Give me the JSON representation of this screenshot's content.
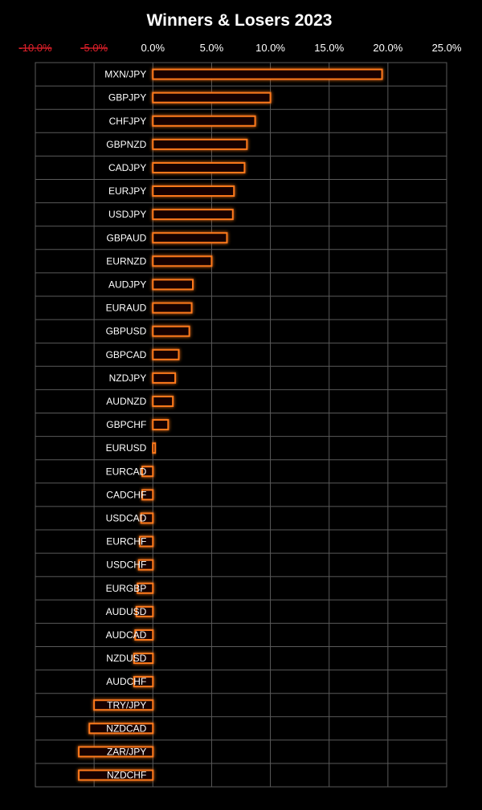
{
  "chart_data": {
    "type": "bar",
    "orientation": "horizontal",
    "title": "Winners & Losers 2023",
    "xlabel": "",
    "ylabel": "",
    "xlim": [
      -10,
      25
    ],
    "x_ticks": [
      -10,
      -5,
      0,
      5,
      10,
      15,
      20,
      25
    ],
    "x_tick_labels": [
      "-10.0%",
      "-5.0%",
      "0.0%",
      "5.0%",
      "10.0%",
      "15.0%",
      "20.0%",
      "25.0%"
    ],
    "grid": true,
    "legend": "none",
    "categories": [
      "MXN/JPY",
      "GBPJPY",
      "CHFJPY",
      "GBPNZD",
      "CADJPY",
      "EURJPY",
      "USDJPY",
      "GBPAUD",
      "EURNZD",
      "AUDJPY",
      "EURAUD",
      "GBPUSD",
      "GBPCAD",
      "NZDJPY",
      "AUDNZD",
      "GBPCHF",
      "EURUSD",
      "EURCAD",
      "CADCHF",
      "USDCAD",
      "EURCHF",
      "USDCHF",
      "EURGBP",
      "AUDUSD",
      "AUDCAD",
      "NZDUSD",
      "AUDCHF",
      "TRY/JPY",
      "NZDCAD",
      "ZAR/JPY",
      "NZDCHF"
    ],
    "values": [
      19.5,
      10.0,
      8.7,
      8.0,
      7.8,
      6.9,
      6.8,
      6.3,
      5.0,
      3.4,
      3.3,
      3.1,
      2.2,
      1.9,
      1.7,
      1.3,
      0.2,
      -0.9,
      -0.9,
      -1.0,
      -1.1,
      -1.2,
      -1.3,
      -1.4,
      -1.5,
      -1.6,
      -1.6,
      -5.0,
      -5.4,
      -6.3,
      -6.3
    ]
  },
  "colors": {
    "background": "#000000",
    "bar_outline": "#ff7a1a",
    "bar_glow": "#ff3d00",
    "negative_tick": "#e0202a",
    "positive_tick": "#ffffff",
    "grid": "#5a5a5a"
  }
}
